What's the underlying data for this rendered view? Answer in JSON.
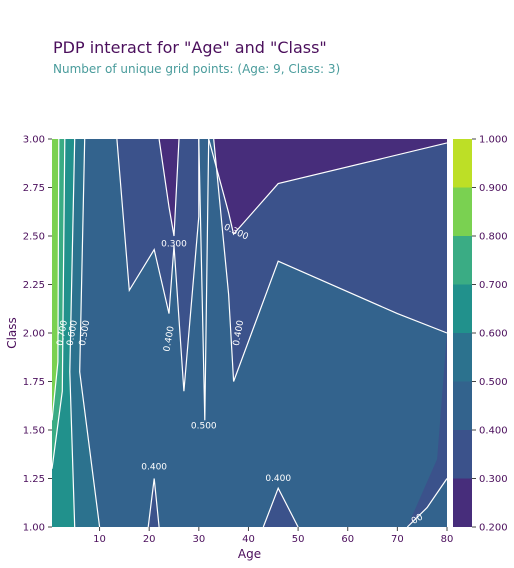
{
  "chart_data": {
    "type": "heatmap",
    "title": "PDP interact for \"Age\" and \"Class\"",
    "subtitle": "Number of unique grid points: (Age: 9, Class: 3)",
    "xlabel": "Age",
    "ylabel": "Class",
    "xlim": [
      0.42,
      80
    ],
    "ylim": [
      1.0,
      3.0
    ],
    "x_ticks": [
      10,
      20,
      30,
      40,
      50,
      60,
      70,
      80
    ],
    "y_ticks": [
      "1.00",
      "1.25",
      "1.50",
      "1.75",
      "2.00",
      "2.25",
      "2.50",
      "2.75",
      "3.00"
    ],
    "colorbar": {
      "ticks": [
        "0.200",
        "0.300",
        "0.400",
        "0.500",
        "0.600",
        "0.700",
        "0.800",
        "0.900",
        "1.000"
      ],
      "levels": [
        0.2,
        0.3,
        0.4,
        0.5,
        0.6,
        0.7,
        0.8,
        0.9,
        1.0
      ],
      "colors": [
        "#472d7b",
        "#3b528b",
        "#33638d",
        "#2c728e",
        "#21918c",
        "#3aac84",
        "#7ad151",
        "#bddf26"
      ]
    },
    "contour_labels": [
      {
        "text": "0.300",
        "x": 25,
        "y": 2.46
      },
      {
        "text": "0.300",
        "x": 37.5,
        "y": 2.52
      },
      {
        "text": "0.400",
        "x": 24,
        "y": 1.97
      },
      {
        "text": "0.400",
        "x": 38,
        "y": 2.0
      },
      {
        "text": "0.500",
        "x": 31,
        "y": 1.52
      },
      {
        "text": "0.400",
        "x": 21,
        "y": 1.31
      },
      {
        "text": "0.400",
        "x": 46,
        "y": 1.25
      },
      {
        "text": "0.500",
        "x": 7,
        "y": 2.0
      },
      {
        "text": "0.600",
        "x": 4.5,
        "y": 2.0
      },
      {
        "text": "0.700",
        "x": 2.5,
        "y": 2.0
      },
      {
        "text": "00",
        "x": 74,
        "y": 1.04
      }
    ]
  }
}
